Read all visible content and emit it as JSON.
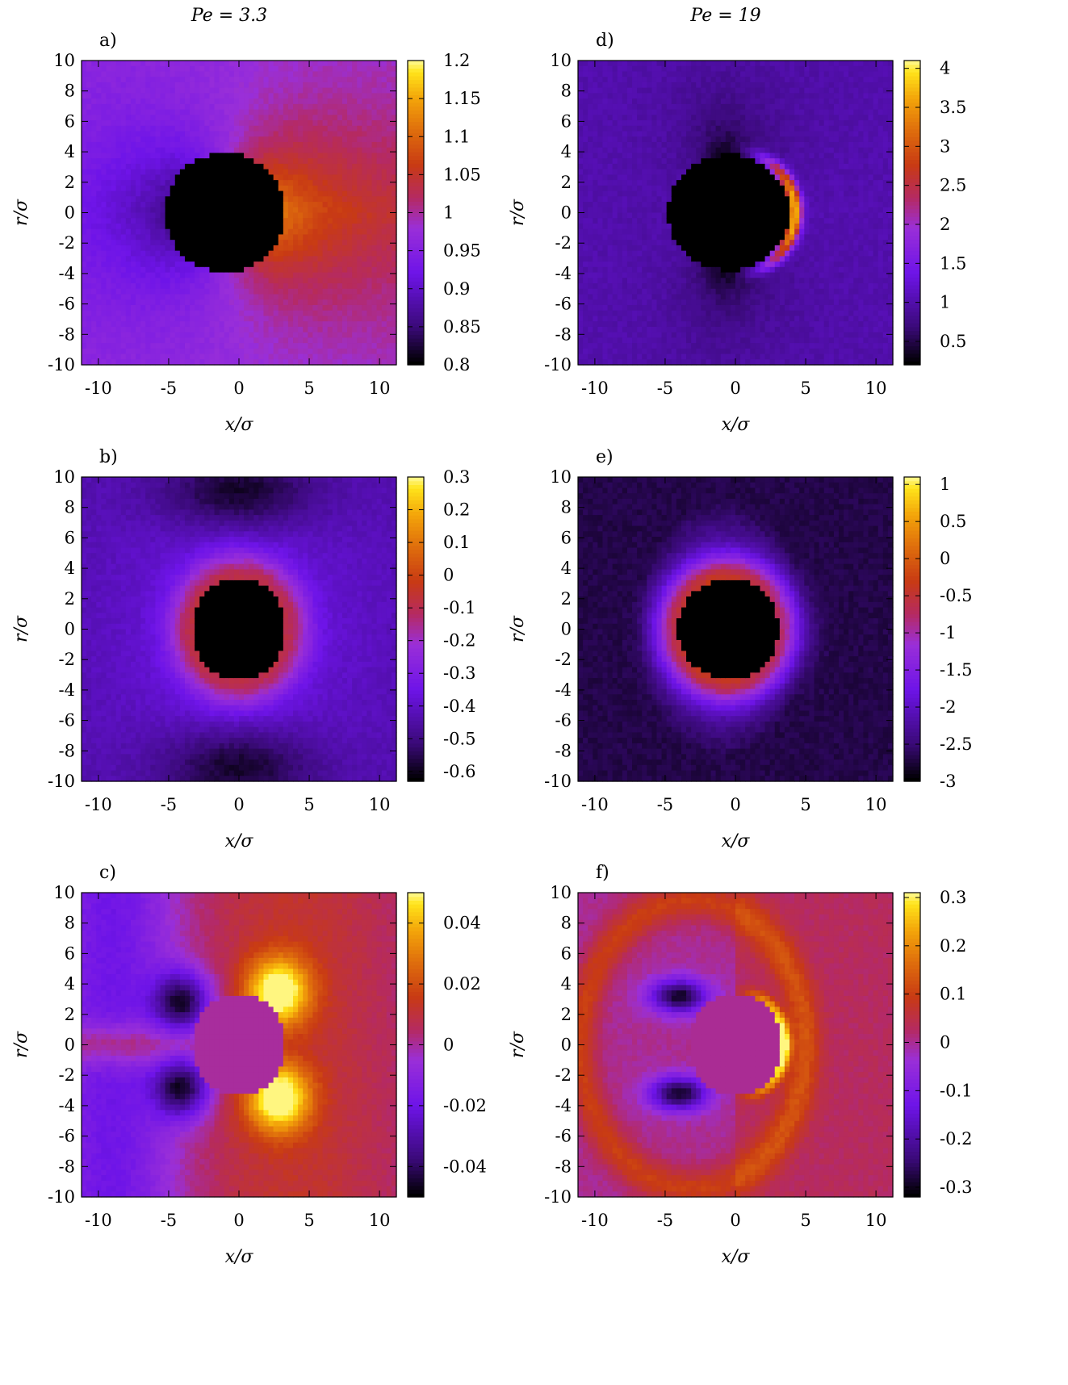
{
  "column_titles": [
    "Pe = 3.3",
    "Pe = 19"
  ],
  "palette": [
    "#000000",
    "#3a0a78",
    "#6e14e8",
    "#9a2fd8",
    "#b52a62",
    "#c83a14",
    "#e0700c",
    "#f3a40a",
    "#ffe41a",
    "#fff680"
  ],
  "chart_data": [
    {
      "type": "heatmap",
      "panel_label": "a)",
      "column_title": "Pe = 3.3",
      "xlabel": "x/σ",
      "ylabel": "r/σ",
      "xlim": [
        -11.2,
        11.2
      ],
      "ylim": [
        -10,
        10
      ],
      "xticks": [
        -10,
        -5,
        0,
        5,
        10
      ],
      "yticks": [
        -10,
        -8,
        -6,
        -4,
        -2,
        0,
        2,
        4,
        6,
        8,
        10
      ],
      "colorbar": {
        "min": 0.8,
        "max": 1.2,
        "ticks": [
          0.8,
          0.85,
          0.9,
          0.95,
          1,
          1.05,
          1.1,
          1.15,
          1.2
        ],
        "tick_labels": [
          "0.8",
          "0.85",
          "0.9",
          "0.95",
          "1",
          "1.05",
          "1.1",
          "1.15",
          "1.2"
        ]
      },
      "field": "density",
      "background_value": 0.97,
      "excluded_region": {
        "cx": -1,
        "cy": 0,
        "rx": 4.3,
        "ry": 3.9,
        "value": 0.8
      }
    },
    {
      "type": "heatmap",
      "panel_label": "b)",
      "xlabel": "x/σ",
      "ylabel": "r/σ",
      "xlim": [
        -11.2,
        11.2
      ],
      "ylim": [
        -10,
        10
      ],
      "xticks": [
        -10,
        -5,
        0,
        5,
        10
      ],
      "yticks": [
        -10,
        -8,
        -6,
        -4,
        -2,
        0,
        2,
        4,
        6,
        8,
        10
      ],
      "colorbar": {
        "min": -0.63,
        "max": 0.3,
        "ticks": [
          -0.6,
          -0.5,
          -0.4,
          -0.3,
          -0.2,
          -0.1,
          0,
          0.1,
          0.2,
          0.3
        ],
        "tick_labels": [
          "-0.6",
          "-0.5",
          "-0.4",
          "-0.3",
          "-0.2",
          "-0.1",
          "0",
          "0.1",
          "0.2",
          "0.3"
        ]
      },
      "field": "b",
      "background_value": -0.45,
      "excluded_region": {
        "cx": 0,
        "cy": 0,
        "rx": 3.3,
        "ry": 3.3,
        "value": -0.63
      }
    },
    {
      "type": "heatmap",
      "panel_label": "c)",
      "xlabel": "x/σ",
      "ylabel": "r/σ",
      "xlim": [
        -11.2,
        11.2
      ],
      "ylim": [
        -10,
        10
      ],
      "xticks": [
        -10,
        -5,
        0,
        5,
        10
      ],
      "yticks": [
        -10,
        -8,
        -6,
        -4,
        -2,
        0,
        2,
        4,
        6,
        8,
        10
      ],
      "colorbar": {
        "min": -0.05,
        "max": 0.05,
        "ticks": [
          -0.04,
          -0.02,
          0,
          0.02,
          0.04
        ],
        "tick_labels": [
          "-0.04",
          "-0.02",
          "0",
          "0.02",
          "0.04"
        ]
      },
      "field": "c",
      "background_value": 0,
      "excluded_region": {
        "cx": 0,
        "cy": 0,
        "rx": 3.3,
        "ry": 3.3,
        "value": 0
      }
    },
    {
      "type": "heatmap",
      "panel_label": "d)",
      "column_title": "Pe = 19",
      "xlabel": "x/σ",
      "ylabel": "r/σ",
      "xlim": [
        -11.2,
        11.2
      ],
      "ylim": [
        -10,
        10
      ],
      "xticks": [
        -10,
        -5,
        0,
        5,
        10
      ],
      "yticks": [
        -10,
        -8,
        -6,
        -4,
        -2,
        0,
        2,
        4,
        6,
        8,
        10
      ],
      "colorbar": {
        "min": 0.2,
        "max": 4.1,
        "ticks": [
          0.5,
          1,
          1.5,
          2,
          2.5,
          3,
          3.5,
          4
        ],
        "tick_labels": [
          "0.5",
          "1",
          "1.5",
          "2",
          "2.5",
          "3",
          "3.5",
          "4"
        ]
      },
      "field": "density",
      "background_value": 1.0,
      "excluded_region": {
        "cx": -0.5,
        "cy": 0,
        "rx": 4.3,
        "ry": 3.8,
        "value": 0.2
      }
    },
    {
      "type": "heatmap",
      "panel_label": "e)",
      "xlabel": "x/σ",
      "ylabel": "r/σ",
      "xlim": [
        -11.2,
        11.2
      ],
      "ylim": [
        -10,
        10
      ],
      "xticks": [
        -10,
        -5,
        0,
        5,
        10
      ],
      "yticks": [
        -10,
        -8,
        -6,
        -4,
        -2,
        0,
        2,
        4,
        6,
        8,
        10
      ],
      "colorbar": {
        "min": -3,
        "max": 1.1,
        "ticks": [
          -3,
          -2.5,
          -2,
          -1.5,
          -1,
          -0.5,
          0,
          0.5,
          1
        ],
        "tick_labels": [
          "-3",
          "-2.5",
          "-2",
          "-1.5",
          "-1",
          "-0.5",
          "0",
          "0.5",
          "1"
        ]
      },
      "field": "e",
      "background_value": -2.5,
      "excluded_region": {
        "cx": -0.5,
        "cy": 0,
        "rx": 3.6,
        "ry": 3.3,
        "value": -3
      }
    },
    {
      "type": "heatmap",
      "panel_label": "f)",
      "xlabel": "x/σ",
      "ylabel": "r/σ",
      "xlim": [
        -11.2,
        11.2
      ],
      "ylim": [
        -10,
        10
      ],
      "xticks": [
        -10,
        -5,
        0,
        5,
        10
      ],
      "yticks": [
        -10,
        -8,
        -6,
        -4,
        -2,
        0,
        2,
        4,
        6,
        8,
        10
      ],
      "colorbar": {
        "min": -0.32,
        "max": 0.31,
        "ticks": [
          -0.3,
          -0.2,
          -0.1,
          0,
          0.1,
          0.2,
          0.3
        ],
        "tick_labels": [
          "-0.3",
          "-0.2",
          "-0.1",
          "0",
          "0.1",
          "0.2",
          "0.3"
        ]
      },
      "field": "f",
      "background_value": 0,
      "excluded_region": {
        "cx": 0,
        "cy": 0,
        "rx": 3.3,
        "ry": 3.3,
        "value": 0
      }
    }
  ]
}
